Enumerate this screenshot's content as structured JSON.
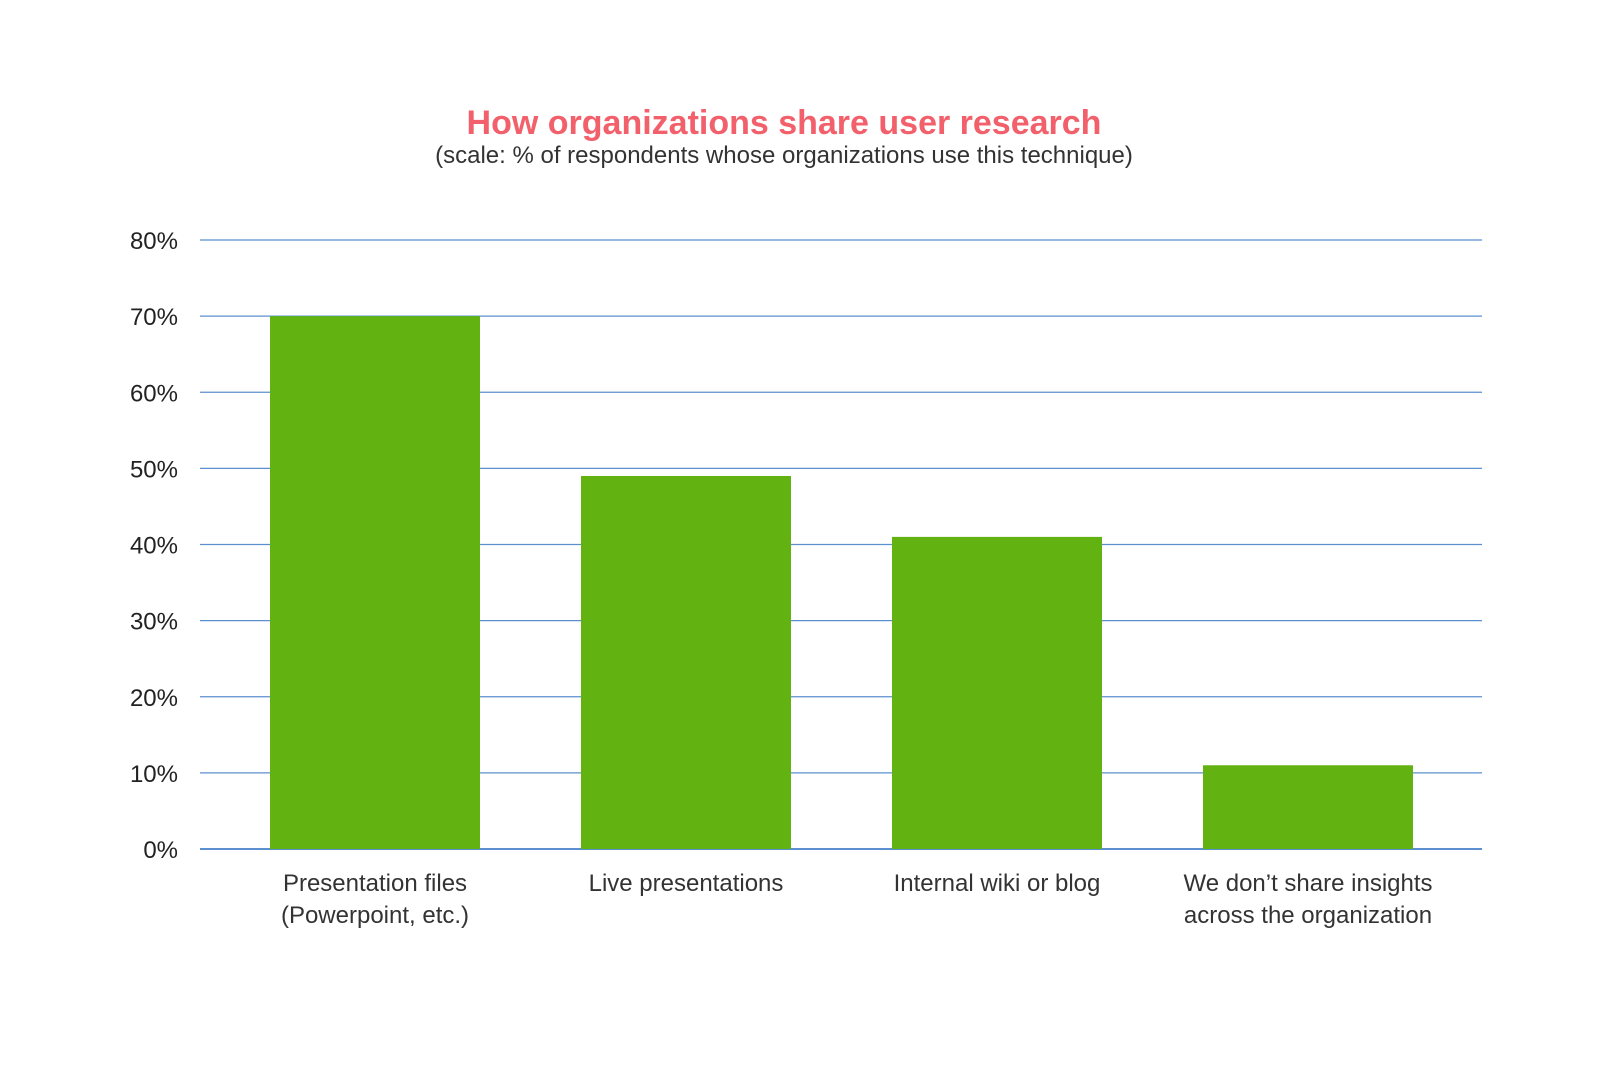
{
  "chart_data": {
    "type": "bar",
    "title": "How organizations share user research",
    "subtitle": "(scale: % of respondents whose organizations use this technique)",
    "xlabel": "",
    "ylabel": "",
    "ylim": [
      0,
      80
    ],
    "yticks": [
      {
        "value": 0,
        "label": "0%"
      },
      {
        "value": 10,
        "label": "10%"
      },
      {
        "value": 20,
        "label": "20%"
      },
      {
        "value": 30,
        "label": "30%"
      },
      {
        "value": 40,
        "label": "40%"
      },
      {
        "value": 50,
        "label": "50%"
      },
      {
        "value": 60,
        "label": "60%"
      },
      {
        "value": 70,
        "label": "70%"
      },
      {
        "value": 80,
        "label": "80%"
      }
    ],
    "categories": [
      [
        "Presentation files",
        "(Powerpoint, etc.)"
      ],
      [
        "Live presentations"
      ],
      [
        "Internal wiki or blog"
      ],
      [
        "We don’t share insights",
        "across the organization"
      ]
    ],
    "values": [
      70,
      49,
      41,
      11
    ],
    "grid": true,
    "legend": "none",
    "colors": {
      "bar": "#62b212",
      "grid": "#5b8fcf",
      "title": "#f2606b"
    }
  }
}
